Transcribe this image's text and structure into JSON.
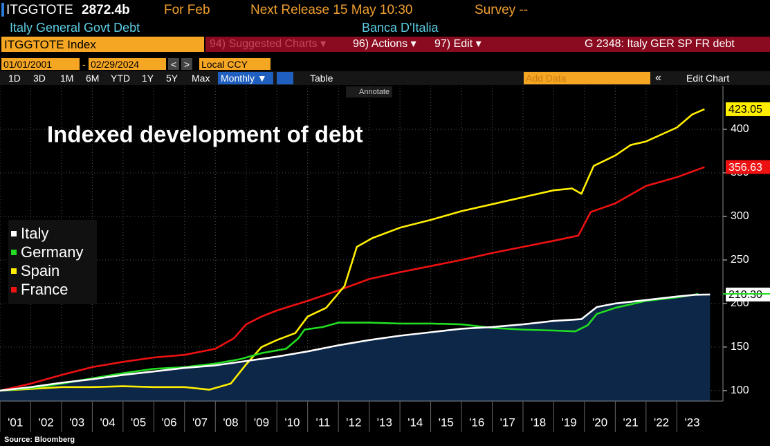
{
  "terminal": {
    "ticker": "ITGGTOTE",
    "last": "2872.4b",
    "for": "For Feb",
    "release": "Next Release 15 May 10:30",
    "survey": "Survey --",
    "name": "Italy General Govt Debt",
    "source_name": "Banca D'Italia",
    "security": "ITGGTOTE Index",
    "suggested": "94) Suggested Charts ▾",
    "actions": "96) Actions ▾",
    "edit": "97) Edit ▾",
    "chart_id": "G 2348: Italy GER SP FR debt",
    "start_date": "01/01/2001",
    "dash": "-",
    "end_date": "02/29/2024",
    "prev": "<",
    "next": ">",
    "currency": "Local CCY",
    "periods": [
      "1D",
      "3D",
      "1M",
      "6M",
      "YTD",
      "1Y",
      "5Y",
      "Max"
    ],
    "frequency": "Monthly ▼",
    "table": "Table",
    "add_data": "Add Data",
    "collapse": "«",
    "edit_chart": "Edit Chart",
    "annotate": "Annotate"
  },
  "chart_data": {
    "type": "line",
    "title": "Indexed development of debt",
    "source": "Source: Bloomberg",
    "xlim": [
      2001,
      2024.5
    ],
    "xticks": [
      {
        "value": 2001,
        "label": "'01"
      },
      {
        "value": 2002,
        "label": "'02"
      },
      {
        "value": 2003,
        "label": "'03"
      },
      {
        "value": 2004,
        "label": "'04"
      },
      {
        "value": 2005,
        "label": "'05"
      },
      {
        "value": 2006,
        "label": "'06"
      },
      {
        "value": 2007,
        "label": "'07"
      },
      {
        "value": 2008,
        "label": "'08"
      },
      {
        "value": 2009,
        "label": "'09"
      },
      {
        "value": 2010,
        "label": "'10"
      },
      {
        "value": 2011,
        "label": "'11"
      },
      {
        "value": 2012,
        "label": "'12"
      },
      {
        "value": 2013,
        "label": "'13"
      },
      {
        "value": 2014,
        "label": "'14"
      },
      {
        "value": 2015,
        "label": "'15"
      },
      {
        "value": 2016,
        "label": "'16"
      },
      {
        "value": 2017,
        "label": "'17"
      },
      {
        "value": 2018,
        "label": "'18"
      },
      {
        "value": 2019,
        "label": "'19"
      },
      {
        "value": 2020,
        "label": "'20"
      },
      {
        "value": 2021,
        "label": "'21"
      },
      {
        "value": 2022,
        "label": "'22"
      },
      {
        "value": 2023,
        "label": "'23"
      }
    ],
    "ylim": [
      88,
      450
    ],
    "yticks": [
      100,
      150,
      200,
      250,
      300,
      350,
      400
    ],
    "grid": true,
    "legend": "left",
    "series": [
      {
        "name": "Italy",
        "color": "#ffffff",
        "area_color": "#0c2748",
        "x": [
          2001,
          2002,
          2003,
          2004,
          2005,
          2006,
          2007,
          2008,
          2009,
          2010,
          2011,
          2012,
          2013,
          2014,
          2015,
          2016,
          2017,
          2018,
          2019,
          2019.9,
          2020.4,
          2021,
          2022,
          2023,
          2023.6,
          2024.08
        ],
        "values": [
          100,
          104,
          109,
          113,
          118,
          122,
          126,
          129,
          134,
          139,
          145,
          152,
          158,
          163,
          167,
          171,
          173,
          176,
          180,
          182,
          196,
          200,
          204,
          208,
          210,
          210.3
        ],
        "value_labels": [
          null,
          null,
          null,
          null,
          null,
          null,
          null,
          null,
          null,
          null,
          null,
          null,
          null,
          null,
          null,
          null,
          null,
          null,
          null,
          null,
          null,
          null,
          null,
          null,
          null,
          "210.30"
        ]
      },
      {
        "name": "Germany",
        "color": "#22dd22",
        "x": [
          2001,
          2002,
          2003,
          2004,
          2005,
          2006,
          2007,
          2008,
          2008.8,
          2009.5,
          2010.3,
          2010.7,
          2010.9,
          2011.5,
          2012,
          2013,
          2014,
          2015,
          2016,
          2017,
          2018,
          2019,
          2019.7,
          2020.1,
          2020.4,
          2021,
          2022,
          2023,
          2023.7
        ],
        "values": [
          100,
          103,
          108,
          114,
          120,
          125,
          127,
          131,
          136,
          143,
          148,
          160,
          170,
          173,
          178,
          178,
          177,
          177,
          176,
          172,
          170,
          169,
          168,
          175,
          188,
          195,
          203,
          207,
          211
        ]
      },
      {
        "name": "Spain",
        "color": "#ffee00",
        "x": [
          2001,
          2002,
          2003,
          2004,
          2005,
          2006,
          2007,
          2007.8,
          2008.5,
          2009,
          2009.5,
          2010,
          2010.6,
          2011,
          2011.6,
          2012.2,
          2012.6,
          2013.1,
          2014,
          2015,
          2016,
          2017,
          2018,
          2019,
          2019.6,
          2019.9,
          2020.3,
          2021,
          2021.5,
          2022,
          2022.5,
          2023,
          2023.5,
          2023.9
        ],
        "values": [
          100,
          102,
          104,
          104,
          105,
          104,
          104,
          101,
          108,
          130,
          150,
          158,
          166,
          185,
          195,
          220,
          265,
          275,
          287,
          296,
          306,
          314,
          322,
          330,
          332,
          326,
          358,
          370,
          382,
          386,
          394,
          402,
          417,
          423.05
        ]
      },
      {
        "name": "France",
        "color": "#ee1111",
        "x": [
          2001,
          2002,
          2003,
          2004,
          2005,
          2006,
          2007,
          2008,
          2008.6,
          2009,
          2009.5,
          2010,
          2011,
          2012,
          2013,
          2014,
          2015,
          2016,
          2017,
          2018,
          2019,
          2019.8,
          2020.2,
          2021,
          2021.5,
          2022,
          2022.5,
          2023,
          2023.9
        ],
        "values": [
          100,
          108,
          118,
          127,
          133,
          138,
          141,
          148,
          160,
          176,
          185,
          192,
          203,
          215,
          228,
          236,
          243,
          250,
          258,
          265,
          272,
          278,
          305,
          315,
          325,
          335,
          340,
          345,
          356.63
        ]
      }
    ]
  }
}
